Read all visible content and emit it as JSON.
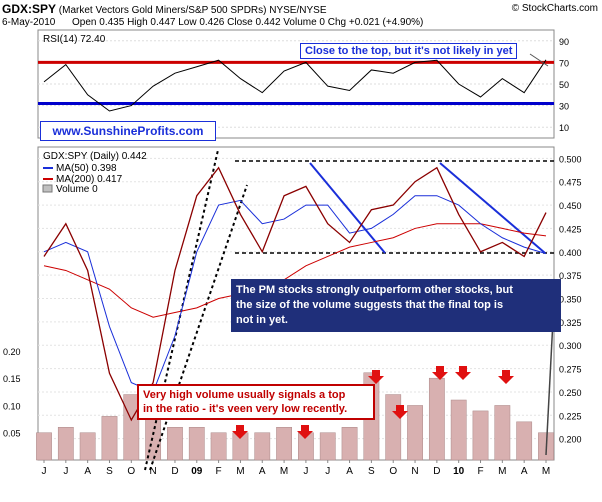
{
  "header": {
    "symbol": "GDX:SPY",
    "description": "(Market Vectors Gold Miners/S&P 500 SPDRs) NYSE/NYSE",
    "date": "6-May-2010",
    "ohlc": "Open 0.435  High 0.447  Low 0.426  Close 0.442  Volume 0  Chg +0.021 (+4.90%)",
    "copyright": "© StockCharts.com"
  },
  "rsi": {
    "label": "RSI(14) 72.40",
    "ticks": [
      "90",
      "70",
      "50",
      "30",
      "10"
    ],
    "overbought_color": "#cc0000",
    "oversold_color": "#0000cc"
  },
  "main": {
    "legend": [
      "GDX:SPY (Daily) 0.442",
      "MA(50) 0.398",
      "MA(200) 0.417",
      "Volume 0"
    ],
    "price_ticks": [
      "0.500",
      "0.475",
      "0.450",
      "0.425",
      "0.400",
      "0.375",
      "0.350",
      "0.325",
      "0.300",
      "0.275",
      "0.250",
      "0.225",
      "0.200"
    ],
    "volume_ticks": [
      "0.20",
      "0.15",
      "0.10",
      "0.05"
    ],
    "x_ticks": [
      "J",
      "J",
      "A",
      "S",
      "O",
      "N",
      "D",
      "09",
      "F",
      "M",
      "A",
      "M",
      "J",
      "J",
      "A",
      "S",
      "O",
      "N",
      "D",
      "10",
      "F",
      "M",
      "A",
      "M"
    ]
  },
  "annotations": {
    "rsi_note": "Close to the top, but it's not likely in yet",
    "website": "www.SunshineProfits.com",
    "pm_note_line1": "The PM stocks strongly outperform other stocks, but",
    "pm_note_line2": "the size of the volume suggests that the final top is",
    "pm_note_line3": "not in yet.",
    "volume_note_line1": "Very high volume usually signals a top",
    "volume_note_line2": "in the ratio - it's veen very low recently."
  },
  "chart_data": {
    "type": "line",
    "x": [
      "2008-06",
      "2008-07",
      "2008-08",
      "2008-09",
      "2008-10",
      "2008-11",
      "2008-12",
      "2009-01",
      "2009-02",
      "2009-03",
      "2009-04",
      "2009-05",
      "2009-06",
      "2009-07",
      "2009-08",
      "2009-09",
      "2009-10",
      "2009-11",
      "2009-12",
      "2010-01",
      "2010-02",
      "2010-03",
      "2010-04",
      "2010-05"
    ],
    "series": [
      {
        "name": "GDX:SPY (Daily)",
        "values": [
          0.395,
          0.43,
          0.38,
          0.27,
          0.22,
          0.26,
          0.38,
          0.46,
          0.49,
          0.44,
          0.4,
          0.46,
          0.47,
          0.43,
          0.41,
          0.445,
          0.45,
          0.475,
          0.49,
          0.44,
          0.4,
          0.41,
          0.395,
          0.442
        ]
      },
      {
        "name": "MA(50)",
        "values": [
          0.4,
          0.41,
          0.4,
          0.32,
          0.26,
          0.25,
          0.31,
          0.4,
          0.45,
          0.455,
          0.43,
          0.435,
          0.45,
          0.45,
          0.42,
          0.425,
          0.44,
          0.46,
          0.46,
          0.45,
          0.43,
          0.415,
          0.405,
          0.398
        ]
      },
      {
        "name": "MA(200)",
        "values": [
          0.385,
          0.38,
          0.37,
          0.36,
          0.34,
          0.33,
          0.335,
          0.34,
          0.35,
          0.355,
          0.36,
          0.37,
          0.385,
          0.395,
          0.405,
          0.41,
          0.415,
          0.425,
          0.43,
          0.43,
          0.43,
          0.425,
          0.42,
          0.417
        ]
      }
    ],
    "rsi_values": [
      52,
      68,
      40,
      25,
      30,
      48,
      60,
      66,
      72,
      55,
      42,
      62,
      70,
      48,
      44,
      63,
      60,
      70,
      72,
      50,
      38,
      55,
      42,
      72.4
    ],
    "volume_values": [
      0.05,
      0.06,
      0.05,
      0.08,
      0.12,
      0.09,
      0.06,
      0.06,
      0.05,
      0.05,
      0.05,
      0.06,
      0.05,
      0.05,
      0.06,
      0.16,
      0.12,
      0.1,
      0.15,
      0.11,
      0.09,
      0.1,
      0.07,
      0.05
    ],
    "ylim": [
      0.19,
      0.51
    ],
    "rsi_ylim": [
      0,
      100
    ],
    "volume_ylim": [
      0,
      0.22
    ]
  }
}
